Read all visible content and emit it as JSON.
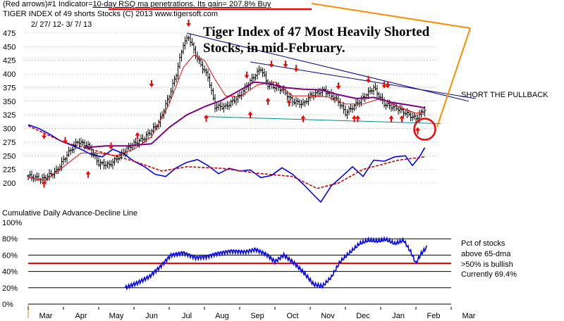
{
  "header": {
    "line1_prefix": "(Red arrows)#1 Indicator=",
    "line1_highlight": "10-day RSQ ma penetrations. Its gain= 207.8% Buy",
    "line2": "TIGER INDEX of  49 shorts Stocks  (C) 2013  www.tigersoft.com",
    "date_range": "2/ 27/ 12-  3/ 7/ 13"
  },
  "annotations": {
    "title_line1": "Tiger Index of 47 Most Heavily Shorted",
    "title_line2": "Stocks, in mid-February.",
    "short_label": "SHORT THE PULLBACK"
  },
  "lower_panel": {
    "title": "Cumulative Daily Advance-Decline Line",
    "note1": "Pct of stocks",
    "note2": "above 65-dma",
    "note3": ">50% is bullish",
    "note4": "Currently  69.4%"
  },
  "colors": {
    "price_bars": "#000000",
    "ma_short": "#ff0000",
    "ma_long": "#800080",
    "oscillator": "#0000ff",
    "osc_ma": "#cc0000",
    "trendline": "#00008b",
    "support": "#008b8b",
    "annotation": "#ff8c00",
    "highlight_underline": "#ff0000"
  },
  "chart_data": [
    {
      "type": "ohlc",
      "title": "TIGER INDEX of 49 shorts Stocks",
      "period": "2/27/12 - 3/7/13",
      "y_ticks": [
        475,
        450,
        425,
        400,
        375,
        350,
        325,
        300,
        275,
        250,
        225,
        200
      ],
      "ylim": [
        190,
        490
      ],
      "x_ticks": [
        "Mar",
        "Apr",
        "May",
        "Jun",
        "Jul",
        "Aug",
        "Sep",
        "Oct",
        "Nov",
        "Dec",
        "Jan",
        "Feb",
        "Mar"
      ],
      "grid": "horizontal dotted",
      "price_close": [
        {
          "t": 0.0,
          "v": 213
        },
        {
          "t": 0.4,
          "v": 207
        },
        {
          "t": 0.8,
          "v": 222
        },
        {
          "t": 1.1,
          "v": 252
        },
        {
          "t": 1.4,
          "v": 276
        },
        {
          "t": 1.7,
          "v": 268
        },
        {
          "t": 2.0,
          "v": 236
        },
        {
          "t": 2.3,
          "v": 233
        },
        {
          "t": 2.6,
          "v": 250
        },
        {
          "t": 2.9,
          "v": 268
        },
        {
          "t": 3.3,
          "v": 283
        },
        {
          "t": 3.7,
          "v": 310
        },
        {
          "t": 4.0,
          "v": 360
        },
        {
          "t": 4.2,
          "v": 400
        },
        {
          "t": 4.4,
          "v": 455
        },
        {
          "t": 4.55,
          "v": 468
        },
        {
          "t": 4.8,
          "v": 428
        },
        {
          "t": 5.1,
          "v": 395
        },
        {
          "t": 5.3,
          "v": 340
        },
        {
          "t": 5.6,
          "v": 340
        },
        {
          "t": 6.0,
          "v": 360
        },
        {
          "t": 6.4,
          "v": 395
        },
        {
          "t": 6.6,
          "v": 410
        },
        {
          "t": 6.8,
          "v": 380
        },
        {
          "t": 7.2,
          "v": 372
        },
        {
          "t": 7.5,
          "v": 350
        },
        {
          "t": 7.8,
          "v": 345
        },
        {
          "t": 8.0,
          "v": 360
        },
        {
          "t": 8.4,
          "v": 370
        },
        {
          "t": 8.8,
          "v": 350
        },
        {
          "t": 9.0,
          "v": 328
        },
        {
          "t": 9.4,
          "v": 350
        },
        {
          "t": 9.8,
          "v": 375
        },
        {
          "t": 10.1,
          "v": 345
        },
        {
          "t": 10.5,
          "v": 336
        },
        {
          "t": 10.8,
          "v": 325
        },
        {
          "t": 11.0,
          "v": 318
        },
        {
          "t": 11.25,
          "v": 335
        }
      ],
      "ma_short": [
        {
          "t": 0.0,
          "v": 210
        },
        {
          "t": 0.5,
          "v": 205
        },
        {
          "t": 1.0,
          "v": 230
        },
        {
          "t": 1.5,
          "v": 255
        },
        {
          "t": 2.0,
          "v": 255
        },
        {
          "t": 2.5,
          "v": 250
        },
        {
          "t": 3.0,
          "v": 262
        },
        {
          "t": 3.5,
          "v": 285
        },
        {
          "t": 4.0,
          "v": 345
        },
        {
          "t": 4.4,
          "v": 412
        },
        {
          "t": 4.7,
          "v": 435
        },
        {
          "t": 5.0,
          "v": 425
        },
        {
          "t": 5.3,
          "v": 390
        },
        {
          "t": 5.6,
          "v": 360
        },
        {
          "t": 6.0,
          "v": 358
        },
        {
          "t": 6.5,
          "v": 380
        },
        {
          "t": 7.0,
          "v": 385
        },
        {
          "t": 7.5,
          "v": 360
        },
        {
          "t": 8.0,
          "v": 360
        },
        {
          "t": 8.5,
          "v": 358
        },
        {
          "t": 9.0,
          "v": 345
        },
        {
          "t": 9.5,
          "v": 345
        },
        {
          "t": 10.0,
          "v": 355
        },
        {
          "t": 10.5,
          "v": 340
        },
        {
          "t": 11.0,
          "v": 328
        },
        {
          "t": 11.25,
          "v": 330
        }
      ],
      "ma_long": [
        {
          "t": 1.6,
          "v": 265
        },
        {
          "t": 2.2,
          "v": 268
        },
        {
          "t": 2.8,
          "v": 268
        },
        {
          "t": 3.5,
          "v": 272
        },
        {
          "t": 4.0,
          "v": 302
        },
        {
          "t": 4.5,
          "v": 325
        },
        {
          "t": 5.0,
          "v": 340
        },
        {
          "t": 5.5,
          "v": 352
        },
        {
          "t": 6.0,
          "v": 370
        },
        {
          "t": 6.4,
          "v": 385
        },
        {
          "t": 6.8,
          "v": 383
        },
        {
          "t": 7.3,
          "v": 375
        },
        {
          "t": 7.8,
          "v": 372
        },
        {
          "t": 8.3,
          "v": 371
        },
        {
          "t": 8.8,
          "v": 362
        },
        {
          "t": 9.3,
          "v": 355
        },
        {
          "t": 9.8,
          "v": 357
        },
        {
          "t": 10.3,
          "v": 348
        },
        {
          "t": 10.8,
          "v": 343
        },
        {
          "t": 11.25,
          "v": 338
        }
      ],
      "oscillator": [
        {
          "t": 0.0,
          "v": 307
        },
        {
          "t": 0.3,
          "v": 300
        },
        {
          "t": 0.6,
          "v": 290
        },
        {
          "t": 0.9,
          "v": 278
        },
        {
          "t": 1.2,
          "v": 270
        },
        {
          "t": 1.5,
          "v": 262
        },
        {
          "t": 1.8,
          "v": 252
        },
        {
          "t": 2.1,
          "v": 248
        },
        {
          "t": 2.4,
          "v": 262
        },
        {
          "t": 2.7,
          "v": 254
        },
        {
          "t": 3.0,
          "v": 240
        },
        {
          "t": 3.3,
          "v": 230
        },
        {
          "t": 3.6,
          "v": 216
        },
        {
          "t": 3.9,
          "v": 212
        },
        {
          "t": 4.2,
          "v": 228
        },
        {
          "t": 4.5,
          "v": 238
        },
        {
          "t": 4.8,
          "v": 243
        },
        {
          "t": 5.1,
          "v": 232
        },
        {
          "t": 5.4,
          "v": 217
        },
        {
          "t": 5.7,
          "v": 227
        },
        {
          "t": 6.0,
          "v": 222
        },
        {
          "t": 6.3,
          "v": 224
        },
        {
          "t": 6.6,
          "v": 210
        },
        {
          "t": 6.9,
          "v": 214
        },
        {
          "t": 7.2,
          "v": 228
        },
        {
          "t": 7.5,
          "v": 216
        },
        {
          "t": 7.8,
          "v": 198
        },
        {
          "t": 8.1,
          "v": 178
        },
        {
          "t": 8.3,
          "v": 165
        },
        {
          "t": 8.6,
          "v": 195
        },
        {
          "t": 8.9,
          "v": 212
        },
        {
          "t": 9.2,
          "v": 230
        },
        {
          "t": 9.5,
          "v": 212
        },
        {
          "t": 9.8,
          "v": 242
        },
        {
          "t": 10.1,
          "v": 240
        },
        {
          "t": 10.4,
          "v": 248
        },
        {
          "t": 10.7,
          "v": 250
        },
        {
          "t": 10.9,
          "v": 232
        },
        {
          "t": 11.1,
          "v": 248
        },
        {
          "t": 11.25,
          "v": 265
        }
      ],
      "osc_ma": [
        {
          "t": 0.0,
          "v": 305
        },
        {
          "t": 1.0,
          "v": 275
        },
        {
          "t": 2.0,
          "v": 258
        },
        {
          "t": 3.0,
          "v": 240
        },
        {
          "t": 3.8,
          "v": 222
        },
        {
          "t": 4.5,
          "v": 230
        },
        {
          "t": 5.5,
          "v": 227
        },
        {
          "t": 6.5,
          "v": 218
        },
        {
          "t": 7.5,
          "v": 212
        },
        {
          "t": 8.2,
          "v": 190
        },
        {
          "t": 8.8,
          "v": 200
        },
        {
          "t": 9.5,
          "v": 225
        },
        {
          "t": 10.5,
          "v": 242
        },
        {
          "t": 11.25,
          "v": 248
        }
      ],
      "trendlines": [
        {
          "name": "upper",
          "from": {
            "t": 4.5,
            "v": 475
          },
          "to": {
            "t": 12.5,
            "v": 350
          }
        },
        {
          "name": "lower",
          "from": {
            "t": 6.3,
            "v": 422
          },
          "to": {
            "t": 12.7,
            "v": 355
          }
        },
        {
          "name": "support",
          "from": {
            "t": 5.0,
            "v": 322
          },
          "to": {
            "t": 11.7,
            "v": 309
          }
        }
      ],
      "buy_arrows": [
        {
          "t": 0.45,
          "v": 198
        },
        {
          "t": 1.7,
          "v": 216
        },
        {
          "t": 3.1,
          "v": 287
        },
        {
          "t": 5.05,
          "v": 319
        },
        {
          "t": 6.3,
          "v": 325
        },
        {
          "t": 6.8,
          "v": 350
        },
        {
          "t": 7.4,
          "v": 347
        },
        {
          "t": 7.8,
          "v": 318
        },
        {
          "t": 9.25,
          "v": 318
        },
        {
          "t": 9.35,
          "v": 318
        },
        {
          "t": 10.3,
          "v": 318
        },
        {
          "t": 10.6,
          "v": 318
        },
        {
          "t": 11.05,
          "v": 296
        }
      ],
      "sell_arrows": [
        {
          "t": 0.45,
          "v": 287
        },
        {
          "t": 1.05,
          "v": 278
        },
        {
          "t": 2.35,
          "v": 268
        },
        {
          "t": 3.5,
          "v": 382
        },
        {
          "t": 4.55,
          "v": 493
        },
        {
          "t": 6.2,
          "v": 398
        },
        {
          "t": 6.9,
          "v": 418
        },
        {
          "t": 7.3,
          "v": 418
        },
        {
          "t": 7.6,
          "v": 410
        },
        {
          "t": 8.8,
          "v": 378
        },
        {
          "t": 9.65,
          "v": 390
        },
        {
          "t": 10.1,
          "v": 380
        },
        {
          "t": 10.2,
          "v": 380
        }
      ]
    },
    {
      "type": "line",
      "title": "Cumulative Daily Advance-Decline Line",
      "series_name": "Pct of stocks above 65-dma",
      "y_ticks": [
        "100%",
        "80%",
        "60%",
        "40%",
        "20%",
        "0%"
      ],
      "ylim": [
        0,
        100
      ],
      "threshold": 50,
      "current": 69.4,
      "x_ticks": [
        "Mar",
        "Apr",
        "May",
        "Jun",
        "Jul",
        "Aug",
        "Sep",
        "Oct",
        "Nov",
        "Dec",
        "Jan",
        "Feb",
        "Mar"
      ],
      "values": [
        {
          "t": 2.75,
          "v": 20
        },
        {
          "t": 3.1,
          "v": 26
        },
        {
          "t": 3.45,
          "v": 34
        },
        {
          "t": 3.75,
          "v": 46
        },
        {
          "t": 4.05,
          "v": 60
        },
        {
          "t": 4.4,
          "v": 63
        },
        {
          "t": 4.75,
          "v": 57
        },
        {
          "t": 5.05,
          "v": 58
        },
        {
          "t": 5.35,
          "v": 62
        },
        {
          "t": 5.75,
          "v": 65
        },
        {
          "t": 6.15,
          "v": 64
        },
        {
          "t": 6.45,
          "v": 67
        },
        {
          "t": 6.75,
          "v": 61
        },
        {
          "t": 7.0,
          "v": 52
        },
        {
          "t": 7.25,
          "v": 60
        },
        {
          "t": 7.55,
          "v": 50
        },
        {
          "t": 7.85,
          "v": 37
        },
        {
          "t": 8.1,
          "v": 24
        },
        {
          "t": 8.35,
          "v": 22
        },
        {
          "t": 8.6,
          "v": 33
        },
        {
          "t": 8.85,
          "v": 52
        },
        {
          "t": 9.15,
          "v": 64
        },
        {
          "t": 9.4,
          "v": 74
        },
        {
          "t": 9.65,
          "v": 78
        },
        {
          "t": 9.9,
          "v": 77
        },
        {
          "t": 10.15,
          "v": 79
        },
        {
          "t": 10.4,
          "v": 74
        },
        {
          "t": 10.65,
          "v": 78
        },
        {
          "t": 10.85,
          "v": 64
        },
        {
          "t": 11.0,
          "v": 50
        },
        {
          "t": 11.15,
          "v": 62
        },
        {
          "t": 11.3,
          "v": 69.4
        }
      ]
    }
  ]
}
